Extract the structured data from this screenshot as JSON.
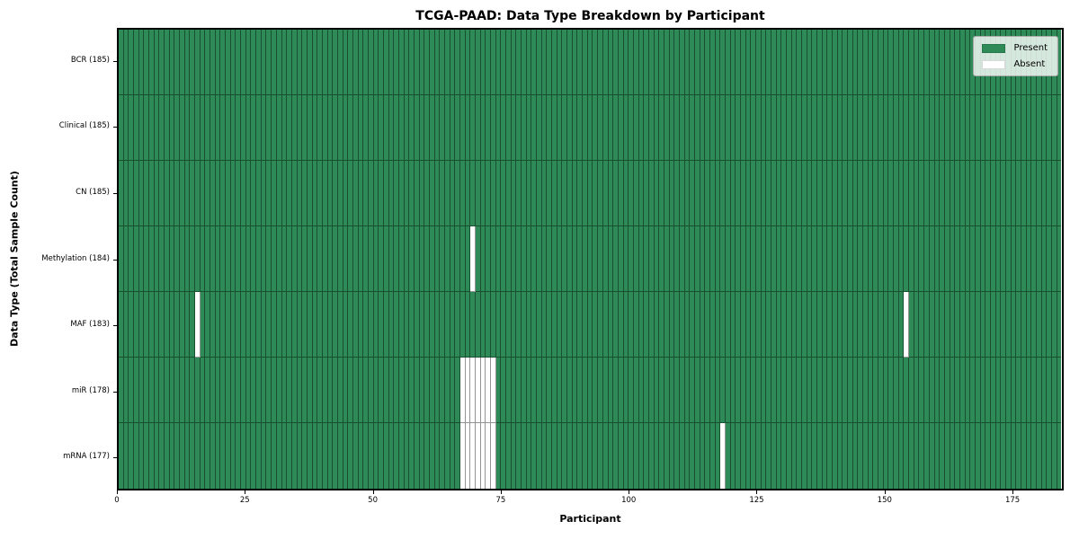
{
  "chart_data": {
    "type": "heatmap",
    "title": "TCGA-PAAD: Data Type Breakdown by Participant",
    "xlabel": "Participant",
    "ylabel": "Data Type (Total Sample Count)",
    "n_participants": 185,
    "x_ticks": [
      0,
      25,
      50,
      75,
      100,
      125,
      150,
      175
    ],
    "xlim": [
      0,
      185
    ],
    "grid": false,
    "legend_position": "upper right",
    "legend": [
      {
        "label": "Present",
        "color": "#2e8b57"
      },
      {
        "label": "Absent",
        "color": "#ffffff"
      }
    ],
    "colors": {
      "present": "#2e8b57",
      "absent": "#ffffff"
    },
    "rows": [
      {
        "label": "BCR (185)",
        "data_type": "BCR",
        "total_samples": 185,
        "absent_participants": []
      },
      {
        "label": "Clinical (185)",
        "data_type": "Clinical",
        "total_samples": 185,
        "absent_participants": []
      },
      {
        "label": "CN (185)",
        "data_type": "CN",
        "total_samples": 185,
        "absent_participants": []
      },
      {
        "label": "Methylation (184)",
        "data_type": "Methylation",
        "total_samples": 184,
        "absent_participants": [
          69
        ]
      },
      {
        "label": "MAF (183)",
        "data_type": "MAF",
        "total_samples": 183,
        "absent_participants": [
          15,
          154
        ]
      },
      {
        "label": "miR (178)",
        "data_type": "miR",
        "total_samples": 178,
        "absent_participants": [
          67,
          68,
          69,
          70,
          71,
          72,
          73
        ]
      },
      {
        "label": "mRNA (177)",
        "data_type": "mRNA",
        "total_samples": 177,
        "absent_participants": [
          67,
          68,
          69,
          70,
          71,
          72,
          73,
          118
        ]
      }
    ]
  }
}
